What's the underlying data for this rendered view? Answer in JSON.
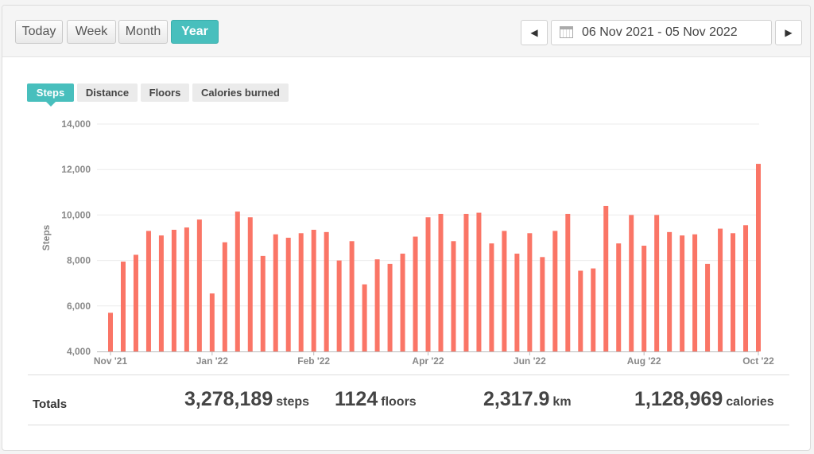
{
  "toolbar": {
    "periods": [
      {
        "label": "Today",
        "active": false
      },
      {
        "label": "Week",
        "active": false
      },
      {
        "label": "Month",
        "active": false
      },
      {
        "label": "Year",
        "active": true
      }
    ],
    "date_range": "06 Nov 2021 - 05 Nov 2022",
    "prev_icon": "triangle-left",
    "next_icon": "triangle-right",
    "calendar_icon": "calendar"
  },
  "metric_tabs": [
    {
      "label": "Steps",
      "active": true
    },
    {
      "label": "Distance",
      "active": false
    },
    {
      "label": "Floors",
      "active": false
    },
    {
      "label": "Calories burned",
      "active": false
    }
  ],
  "colors": {
    "accent": "#48bfbd",
    "bar": "#fa7566"
  },
  "chart_data": {
    "type": "bar",
    "ylabel": "Steps",
    "ylim": [
      4000,
      14000
    ],
    "yticks": [
      "4,000",
      "6,000",
      "8,000",
      "10,000",
      "12,000",
      "14,000"
    ],
    "xtick_labels": [
      {
        "label": "Nov '21",
        "index": 0
      },
      {
        "label": "Jan '22",
        "index": 8
      },
      {
        "label": "Feb '22",
        "index": 16
      },
      {
        "label": "Apr '22",
        "index": 25
      },
      {
        "label": "Jun '22",
        "index": 33
      },
      {
        "label": "Aug '22",
        "index": 42
      },
      {
        "label": "Oct '22",
        "index": 51
      }
    ],
    "values": [
      5700,
      7950,
      8250,
      9300,
      9100,
      9350,
      9450,
      9800,
      6550,
      8800,
      10150,
      9900,
      8200,
      9150,
      9000,
      9200,
      9350,
      9250,
      8000,
      8850,
      6950,
      8050,
      7850,
      8300,
      9050,
      9900,
      10050,
      8850,
      10050,
      10100,
      8750,
      9300,
      8300,
      9200,
      8150,
      9300,
      10050,
      7550,
      7650,
      10400,
      8750,
      10000,
      8650,
      10000,
      9250,
      9100,
      9150,
      7850,
      9400,
      9200,
      9550,
      12250
    ]
  },
  "totals": {
    "label": "Totals",
    "items": [
      {
        "value": "3,278,189",
        "unit": "steps"
      },
      {
        "value": "1124",
        "unit": "floors"
      },
      {
        "value": "2,317.9",
        "unit": "km"
      },
      {
        "value": "1,128,969",
        "unit": "calories"
      }
    ]
  }
}
